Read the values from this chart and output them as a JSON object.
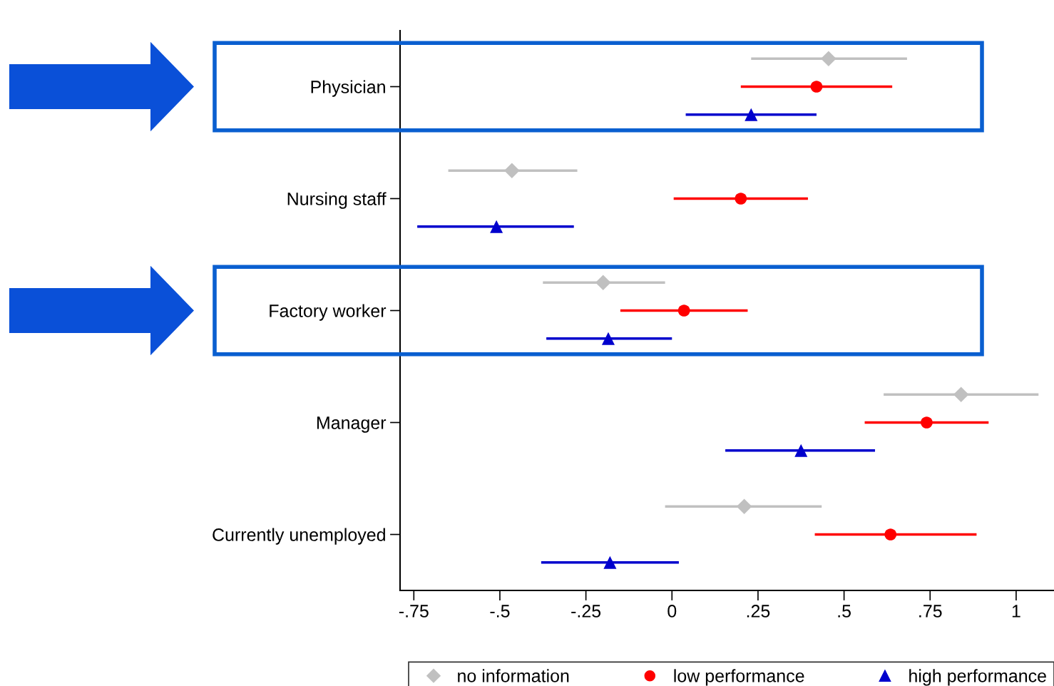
{
  "chart_data": {
    "type": "scatter",
    "orientation": "horizontal",
    "categories": [
      "Physician",
      "Nursing staff",
      "Factory worker",
      "Manager",
      "Currently unemployed"
    ],
    "xlim": [
      -0.79,
      1.11
    ],
    "xticks": [
      {
        "value": -0.75,
        "label": "-.75"
      },
      {
        "value": -0.5,
        "label": "-.5"
      },
      {
        "value": -0.25,
        "label": "-.25"
      },
      0,
      {
        "value": 0.25,
        "label": ".25"
      },
      {
        "value": 0.5,
        "label": ".5"
      },
      {
        "value": 0.75,
        "label": ".75"
      },
      1
    ],
    "grid": false,
    "legend": "bottom",
    "line_style": "solid",
    "series": [
      {
        "name": "no information",
        "color": "#c0c0c0",
        "marker": "diamond",
        "values": [
          0.455,
          -0.465,
          -0.2,
          0.84,
          0.21
        ],
        "errors": [
          [
            0.23,
            0.683
          ],
          [
            -0.65,
            -0.275
          ],
          [
            -0.375,
            -0.02
          ],
          [
            0.615,
            1.065
          ],
          [
            -0.02,
            0.435
          ]
        ]
      },
      {
        "name": "low performance",
        "color": "#ff0000",
        "marker": "circle",
        "values": [
          0.42,
          0.2,
          0.035,
          0.74,
          0.635
        ],
        "errors": [
          [
            0.2,
            0.64
          ],
          [
            0.005,
            0.395
          ],
          [
            -0.15,
            0.22
          ],
          [
            0.56,
            0.92
          ],
          [
            0.415,
            0.885
          ]
        ]
      },
      {
        "name": "high performance",
        "color": "#0000cd",
        "marker": "triangle",
        "values": [
          0.23,
          -0.51,
          -0.185,
          0.375,
          -0.18
        ],
        "errors": [
          [
            0.04,
            0.42
          ],
          [
            -0.74,
            -0.285
          ],
          [
            -0.365,
            0.0
          ],
          [
            0.155,
            0.59
          ],
          [
            -0.38,
            0.02
          ]
        ]
      }
    ]
  }
}
